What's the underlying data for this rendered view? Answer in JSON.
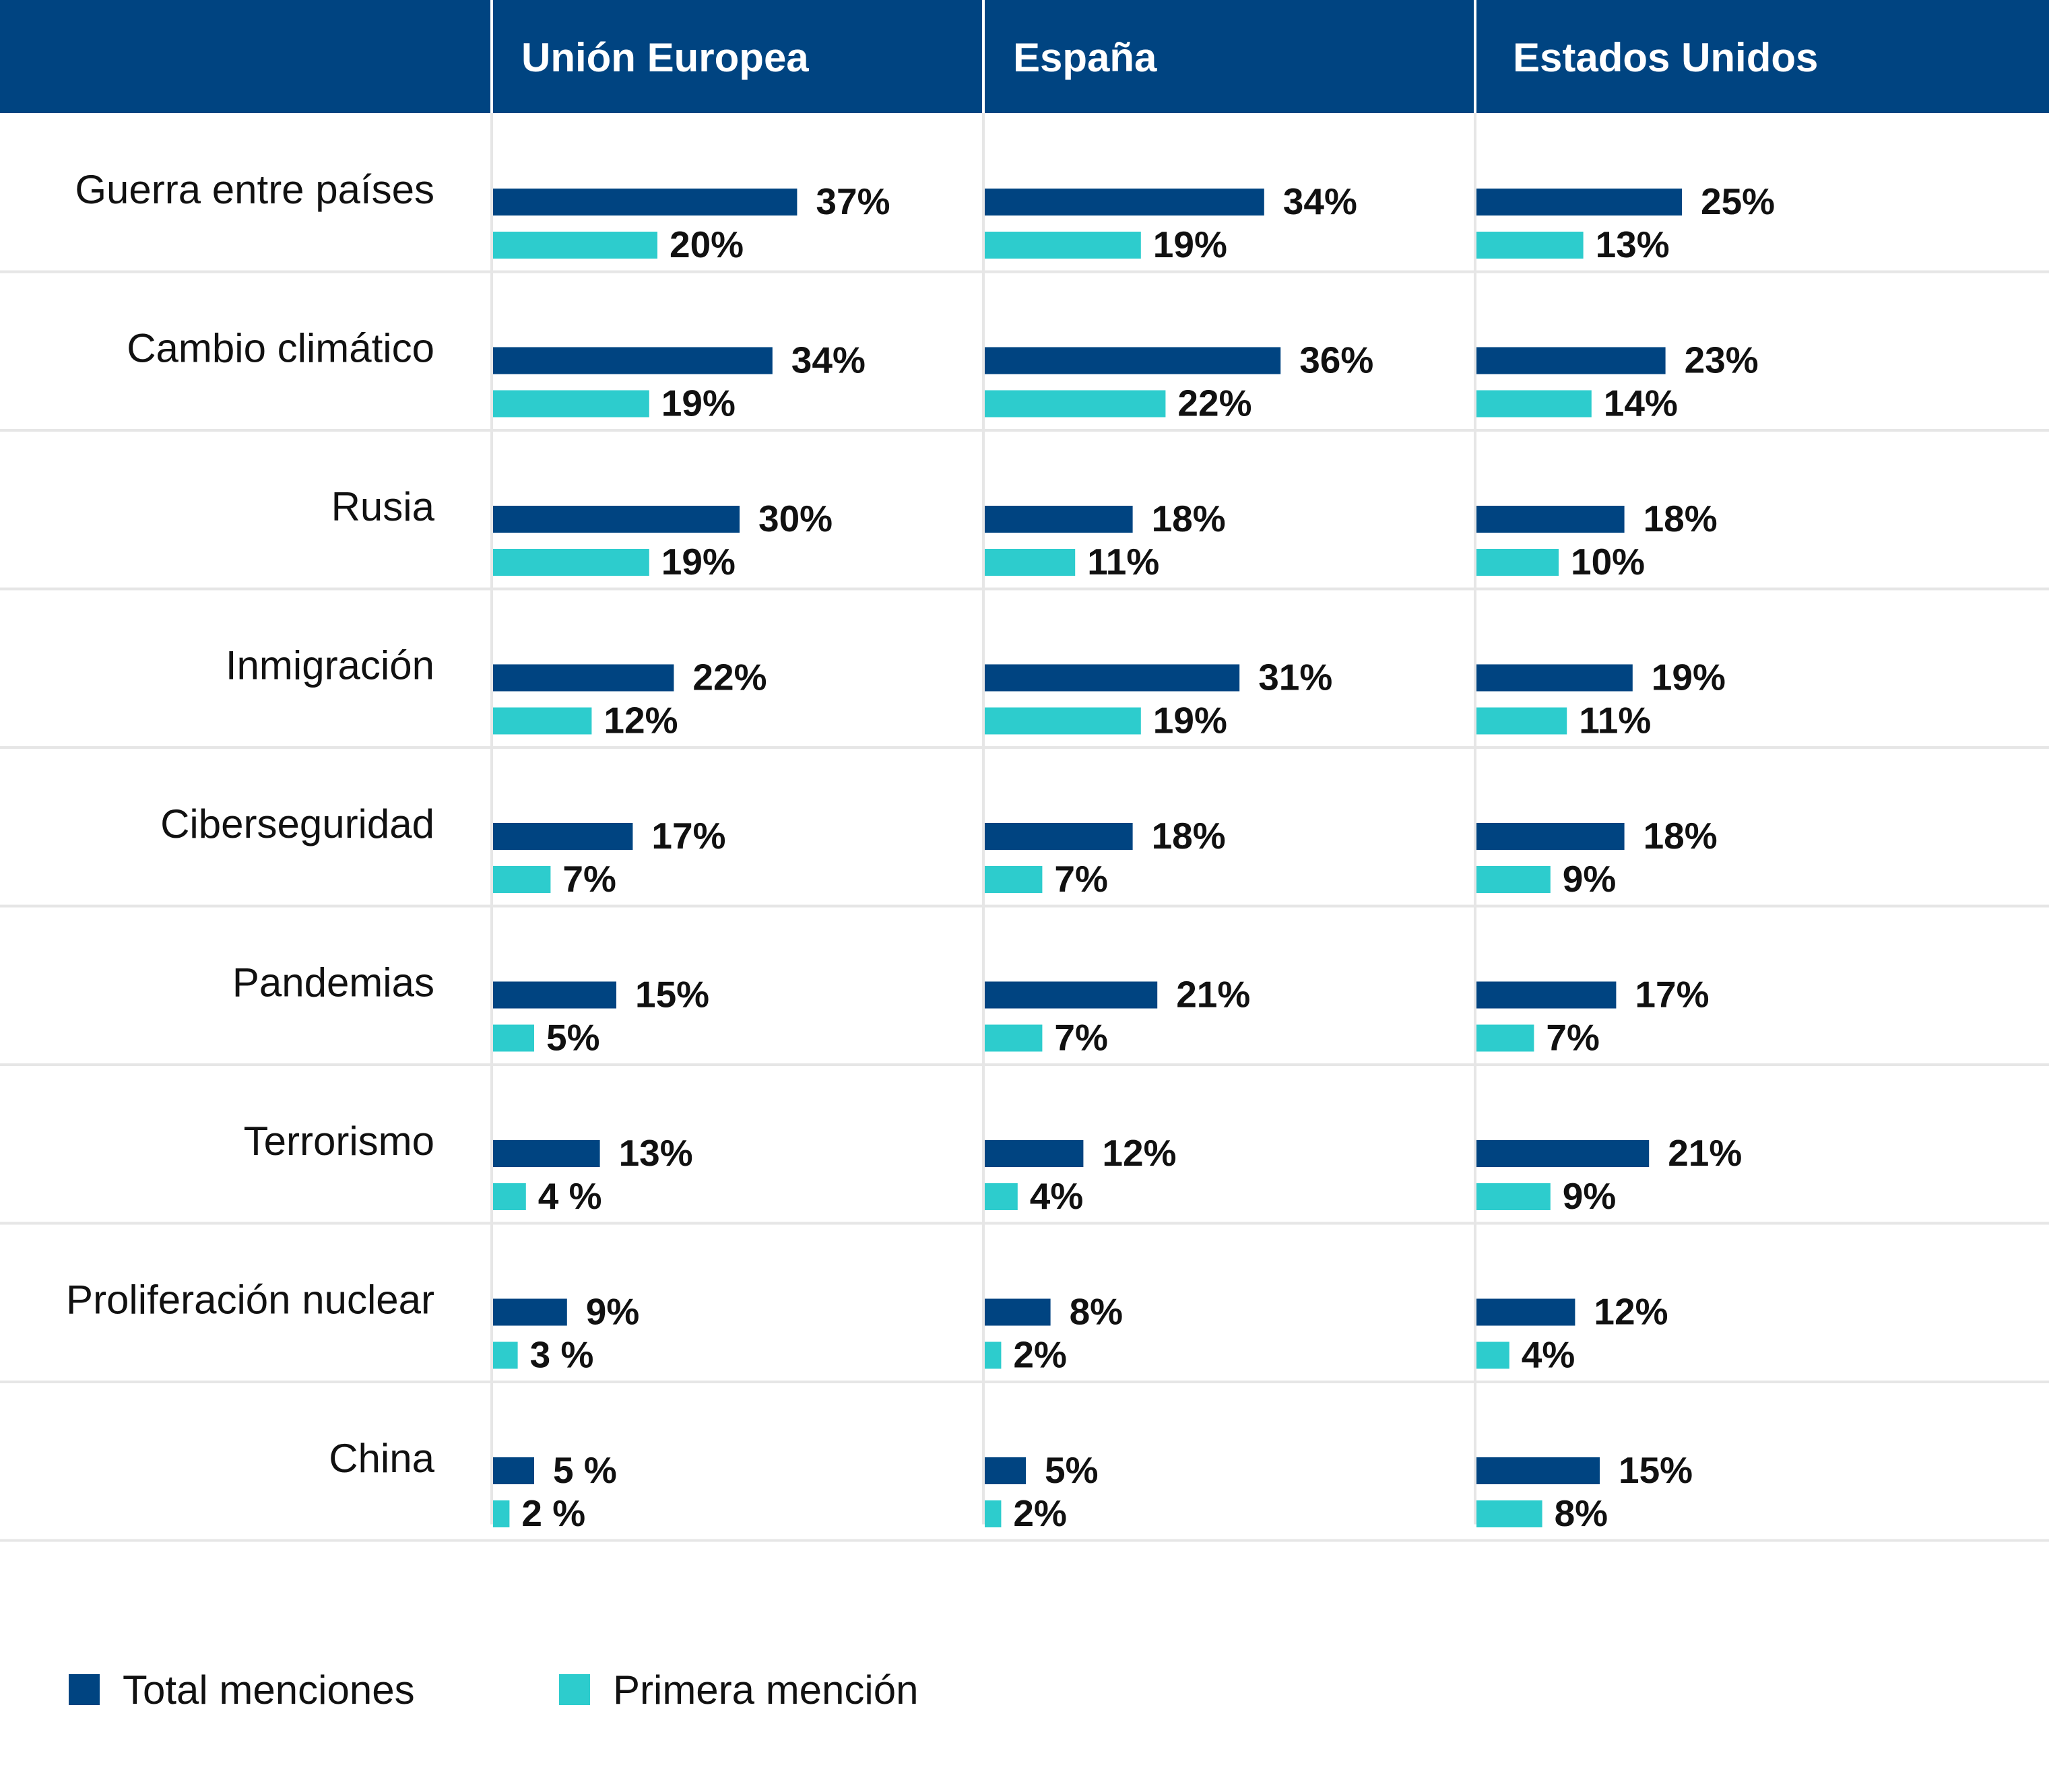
{
  "chart_data": {
    "type": "bar",
    "orientation": "horizontal",
    "columns": [
      "Unión Europea",
      "España",
      "Estados Unidos"
    ],
    "categories": [
      "Guerra entre países",
      "Cambio climático",
      "Rusia",
      "Inmigración",
      "Ciberseguridad",
      "Pandemias",
      "Terrorismo",
      "Proliferación nuclear",
      "China"
    ],
    "series": [
      {
        "name": "Total menciones",
        "color": "#004481",
        "values": [
          [
            37,
            34,
            25
          ],
          [
            34,
            36,
            23
          ],
          [
            30,
            18,
            18
          ],
          [
            22,
            31,
            19
          ],
          [
            17,
            18,
            18
          ],
          [
            15,
            21,
            17
          ],
          [
            13,
            12,
            21
          ],
          [
            9,
            8,
            12
          ],
          [
            5,
            5,
            15
          ]
        ],
        "labels": [
          [
            "37%",
            "34%",
            "25%"
          ],
          [
            "34%",
            "36%",
            "23%"
          ],
          [
            "30%",
            "18%",
            "18%"
          ],
          [
            "22%",
            "31%",
            "19%"
          ],
          [
            "17%",
            "18%",
            "18%"
          ],
          [
            "15%",
            "21%",
            "17%"
          ],
          [
            "13%",
            "12%",
            "21%"
          ],
          [
            "9%",
            "8%",
            "12%"
          ],
          [
            "5 %",
            "5%",
            "15%"
          ]
        ]
      },
      {
        "name": "Primera mención",
        "color": "#2DCCCD",
        "values": [
          [
            20,
            19,
            13
          ],
          [
            19,
            22,
            14
          ],
          [
            19,
            11,
            10
          ],
          [
            12,
            19,
            11
          ],
          [
            7,
            7,
            9
          ],
          [
            5,
            7,
            7
          ],
          [
            4,
            4,
            9
          ],
          [
            3,
            2,
            4
          ],
          [
            2,
            2,
            8
          ]
        ],
        "labels": [
          [
            "20%",
            "19%",
            "13%"
          ],
          [
            "19%",
            "22%",
            "14%"
          ],
          [
            "19%",
            "11%",
            "10%"
          ],
          [
            "12%",
            "19%",
            "11%"
          ],
          [
            "7%",
            "7%",
            "9%"
          ],
          [
            "5%",
            "7%",
            "7%"
          ],
          [
            "4 %",
            "4%",
            "9%"
          ],
          [
            "3 %",
            "2%",
            "4%"
          ],
          [
            "2 %",
            "2%",
            "8%"
          ]
        ]
      }
    ],
    "legend": [
      "Total menciones",
      "Primera mención"
    ],
    "legend_position": "bottom-left",
    "xlim": [
      0,
      40
    ]
  }
}
